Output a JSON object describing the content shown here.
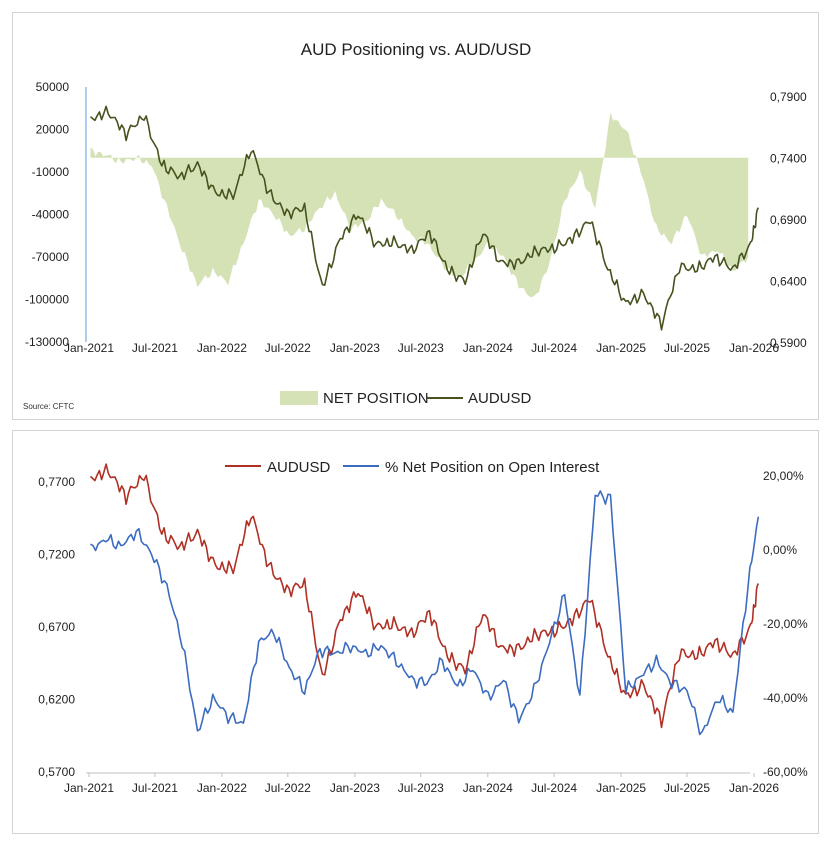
{
  "chart_data": [
    {
      "type": "area",
      "title": "AUD Positioning vs. AUD/USD",
      "source": "Source: CFTC",
      "x_labels": [
        "Jan-2021",
        "Jul-2021",
        "Jan-2022",
        "Jul-2022",
        "Jan-2023",
        "Jul-2023",
        "Jan-2024",
        "Jul-2024",
        "Jan-2025",
        "Jul-2025",
        "Jan-2026"
      ],
      "y_left_ticks": [
        "50000",
        "20000",
        "-10000",
        "-40000",
        "-70000",
        "-100000",
        "-130000"
      ],
      "y_right_ticks": [
        "0,7900",
        "0,7400",
        "0,6900",
        "0,6400",
        "0,5900"
      ],
      "ylim_left": [
        -130000,
        50000
      ],
      "ylim_right": [
        0.59,
        0.79
      ],
      "legend_position": "bottom",
      "series": [
        {
          "name": "NET POSITION",
          "kind": "area",
          "axis": "left",
          "color": "#d4e2b6",
          "x": [
            "2021-01-05",
            "2021-02-16",
            "2021-03-30",
            "2021-05-11",
            "2021-06-22",
            "2021-08-03",
            "2021-09-14",
            "2021-10-26",
            "2021-12-07",
            "2022-01-18",
            "2022-03-01",
            "2022-04-12",
            "2022-05-24",
            "2022-07-05",
            "2022-08-16",
            "2022-09-27",
            "2022-11-08",
            "2022-12-20",
            "2023-01-31",
            "2023-03-14",
            "2023-04-25",
            "2023-06-06",
            "2023-07-18",
            "2023-08-29",
            "2023-10-10",
            "2023-11-21",
            "2024-01-02",
            "2024-02-13",
            "2024-03-26",
            "2024-05-07",
            "2024-06-18",
            "2024-07-30",
            "2024-09-10",
            "2024-10-22",
            "2024-12-03",
            "2025-01-14",
            "2025-02-25",
            "2025-04-08",
            "2025-05-20",
            "2025-07-01",
            "2025-08-12",
            "2025-09-23",
            "2025-11-04",
            "2025-12-16"
          ],
          "values": [
            5000,
            2000,
            -3000,
            0,
            -5000,
            -35000,
            -65000,
            -90000,
            -80000,
            -88000,
            -60000,
            -30000,
            -40000,
            -55000,
            -50000,
            -35000,
            -25000,
            -50000,
            -45000,
            -30000,
            -40000,
            -55000,
            -60000,
            -75000,
            -85000,
            -75000,
            -60000,
            -70000,
            -90000,
            -100000,
            -75000,
            -30000,
            -10000,
            -35000,
            30000,
            20000,
            -10000,
            -50000,
            -60000,
            -40000,
            -70000,
            -65000,
            -80000,
            -70000
          ]
        },
        {
          "name": "AUDUSD",
          "kind": "line",
          "axis": "right",
          "color": "#46531e",
          "x": [
            "2021-01-05",
            "2021-02-23",
            "2021-04-13",
            "2021-06-01",
            "2021-07-20",
            "2021-09-07",
            "2021-10-26",
            "2021-12-14",
            "2022-02-01",
            "2022-03-22",
            "2022-05-10",
            "2022-06-28",
            "2022-08-16",
            "2022-10-04",
            "2022-11-22",
            "2023-01-10",
            "2023-02-28",
            "2023-04-18",
            "2023-06-06",
            "2023-07-25",
            "2023-09-12",
            "2023-10-31",
            "2023-12-19",
            "2024-02-06",
            "2024-03-26",
            "2024-05-14",
            "2024-07-02",
            "2024-08-20",
            "2024-10-08",
            "2024-11-26",
            "2025-01-14",
            "2025-03-04",
            "2025-04-22",
            "2025-06-10",
            "2025-07-29",
            "2025-09-16",
            "2025-11-04",
            "2025-12-23",
            "2026-01-13"
          ],
          "values": [
            0.772,
            0.778,
            0.76,
            0.775,
            0.735,
            0.725,
            0.735,
            0.712,
            0.71,
            0.748,
            0.712,
            0.695,
            0.7,
            0.635,
            0.675,
            0.695,
            0.67,
            0.672,
            0.665,
            0.68,
            0.65,
            0.64,
            0.68,
            0.655,
            0.655,
            0.665,
            0.667,
            0.675,
            0.69,
            0.65,
            0.622,
            0.63,
            0.605,
            0.652,
            0.65,
            0.66,
            0.65,
            0.67,
            0.7
          ]
        }
      ]
    },
    {
      "type": "line",
      "x_labels": [
        "Jan-2021",
        "Jul-2021",
        "Jan-2022",
        "Jul-2022",
        "Jan-2023",
        "Jul-2023",
        "Jan-2024",
        "Jul-2024",
        "Jan-2025",
        "Jul-2025",
        "Jan-2026"
      ],
      "y_left_ticks": [
        "0,7700",
        "0,7200",
        "0,6700",
        "0,6200",
        "0,5700"
      ],
      "y_right_ticks": [
        "20,00%",
        "0,00%",
        "-20,00%",
        "-40,00%",
        "-60,00%"
      ],
      "ylim_left": [
        0.57,
        0.79
      ],
      "ylim_right": [
        -60,
        20
      ],
      "legend_position": "top",
      "series": [
        {
          "name": "AUDUSD",
          "axis": "left",
          "color": "#b03024",
          "x": [
            "2021-01-05",
            "2021-02-23",
            "2021-04-13",
            "2021-06-01",
            "2021-07-20",
            "2021-09-07",
            "2021-10-26",
            "2021-12-14",
            "2022-02-01",
            "2022-03-22",
            "2022-05-10",
            "2022-06-28",
            "2022-08-16",
            "2022-10-04",
            "2022-11-22",
            "2023-01-10",
            "2023-02-28",
            "2023-04-18",
            "2023-06-06",
            "2023-07-25",
            "2023-09-12",
            "2023-10-31",
            "2023-12-19",
            "2024-02-06",
            "2024-03-26",
            "2024-05-14",
            "2024-07-02",
            "2024-08-20",
            "2024-10-08",
            "2024-11-26",
            "2025-01-14",
            "2025-03-04",
            "2025-04-22",
            "2025-06-10",
            "2025-07-29",
            "2025-09-16",
            "2025-11-04",
            "2025-12-23",
            "2026-01-13"
          ],
          "values": [
            0.772,
            0.778,
            0.76,
            0.775,
            0.735,
            0.725,
            0.735,
            0.712,
            0.71,
            0.748,
            0.712,
            0.695,
            0.7,
            0.635,
            0.675,
            0.695,
            0.67,
            0.672,
            0.665,
            0.68,
            0.65,
            0.64,
            0.68,
            0.655,
            0.655,
            0.665,
            0.667,
            0.675,
            0.69,
            0.65,
            0.622,
            0.63,
            0.605,
            0.652,
            0.65,
            0.66,
            0.65,
            0.67,
            0.7
          ]
        },
        {
          "name": "% Net Position on Open Interest",
          "axis": "right",
          "color": "#3c6cc0",
          "x": [
            "2021-01-05",
            "2021-02-16",
            "2021-03-30",
            "2021-05-11",
            "2021-06-22",
            "2021-08-03",
            "2021-09-14",
            "2021-10-26",
            "2021-12-07",
            "2022-01-18",
            "2022-03-01",
            "2022-04-12",
            "2022-05-24",
            "2022-07-05",
            "2022-08-16",
            "2022-09-27",
            "2022-11-08",
            "2022-12-20",
            "2023-01-31",
            "2023-03-14",
            "2023-04-25",
            "2023-06-06",
            "2023-07-18",
            "2023-08-29",
            "2023-10-10",
            "2023-11-21",
            "2024-01-02",
            "2024-02-13",
            "2024-03-26",
            "2024-05-07",
            "2024-06-18",
            "2024-07-30",
            "2024-09-10",
            "2024-10-22",
            "2024-12-03",
            "2025-01-14",
            "2025-02-25",
            "2025-04-08",
            "2025-05-20",
            "2025-07-01",
            "2025-08-12",
            "2025-09-23",
            "2025-11-04",
            "2025-12-16",
            "2026-01-13"
          ],
          "values": [
            0,
            3,
            1,
            5,
            -1,
            -10,
            -25,
            -49,
            -40,
            -45,
            -47,
            -25,
            -22,
            -32,
            -38,
            -27,
            -28,
            -26,
            -28,
            -26,
            -30,
            -35,
            -36,
            -30,
            -37,
            -32,
            -40,
            -35,
            -46,
            -38,
            -25,
            -12,
            -40,
            15,
            14,
            -38,
            -34,
            -30,
            -36,
            -38,
            -50,
            -40,
            -44,
            -9,
            9
          ]
        }
      ]
    }
  ]
}
